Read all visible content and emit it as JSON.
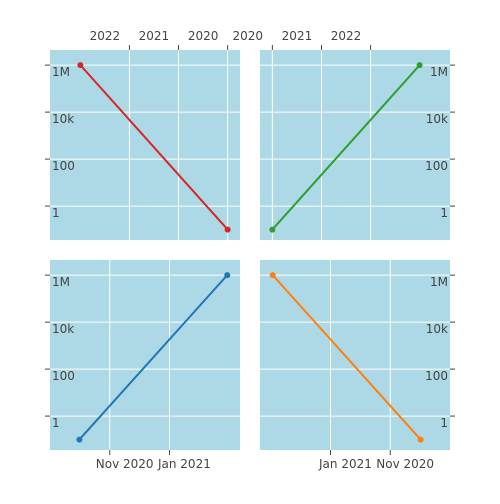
{
  "chart_data": [
    {
      "type": "line",
      "x": [
        "2020-01-01",
        "2023-01-01"
      ],
      "values": [
        0.1,
        1000000
      ],
      "color": "#d62728",
      "xlim": [
        "2023-08-15",
        "2019-10-01"
      ],
      "x_side": "top",
      "y_side": "left",
      "log_y": true,
      "xticks": [
        {
          "value": "2022-01-01",
          "label": "2022"
        },
        {
          "value": "2021-01-01",
          "label": "2021"
        },
        {
          "value": "2020-01-01",
          "label": "2020"
        }
      ],
      "ylim": [
        0.036,
        4400000
      ],
      "yticks": [
        1,
        100,
        {
          "value": 10000,
          "label": "10k"
        },
        {
          "value": 1000000,
          "label": "1M"
        }
      ],
      "grid": true
    },
    {
      "type": "line",
      "x": [
        "2020-01-01",
        "2023-01-01"
      ],
      "values": [
        0.1,
        1000000
      ],
      "color": "#2ca02c",
      "xlim": [
        "2019-10-01",
        "2023-08-15"
      ],
      "x_side": "top",
      "y_side": "right",
      "log_y": true,
      "xticks": [
        {
          "value": "2020-01-01",
          "label": "2020"
        },
        {
          "value": "2021-01-01",
          "label": "2021"
        },
        {
          "value": "2022-01-01",
          "label": "2022"
        }
      ],
      "ylim": [
        0.036,
        4400000
      ],
      "yticks": [
        1,
        100,
        {
          "value": 10000,
          "label": "10k"
        },
        {
          "value": 1000000,
          "label": "1M"
        }
      ],
      "grid": true
    },
    {
      "type": "line",
      "x": [
        "2020-10-01",
        "2021-03-01"
      ],
      "values": [
        0.1,
        1000000
      ],
      "color": "#1f77b4",
      "xlim": [
        "2020-09-01",
        "2021-03-14"
      ],
      "x_side": "bottom",
      "y_side": "left",
      "log_y": true,
      "xticks": [
        {
          "value": "2020-11-01",
          "label": "Nov 2020"
        },
        {
          "value": "2021-01-01",
          "label": "Jan 2021"
        }
      ],
      "ylim": [
        0.036,
        4400000
      ],
      "yticks": [
        1,
        100,
        {
          "value": 10000,
          "label": "10k"
        },
        {
          "value": 1000000,
          "label": "1M"
        }
      ],
      "grid": true
    },
    {
      "type": "line",
      "x": [
        "2020-10-01",
        "2021-03-01"
      ],
      "values": [
        0.1,
        1000000
      ],
      "color": "#ff7f0e",
      "xlim": [
        "2021-03-14",
        "2020-09-01"
      ],
      "x_side": "bottom",
      "y_side": "right",
      "log_y": true,
      "xticks": [
        {
          "value": "2021-01-01",
          "label": "Jan 2021"
        },
        {
          "value": "2020-11-01",
          "label": "Nov 2020"
        }
      ],
      "ylim": [
        0.036,
        4400000
      ],
      "yticks": [
        1,
        100,
        {
          "value": 10000,
          "label": "10k"
        },
        {
          "value": 1000000,
          "label": "1M"
        }
      ],
      "grid": true
    }
  ]
}
